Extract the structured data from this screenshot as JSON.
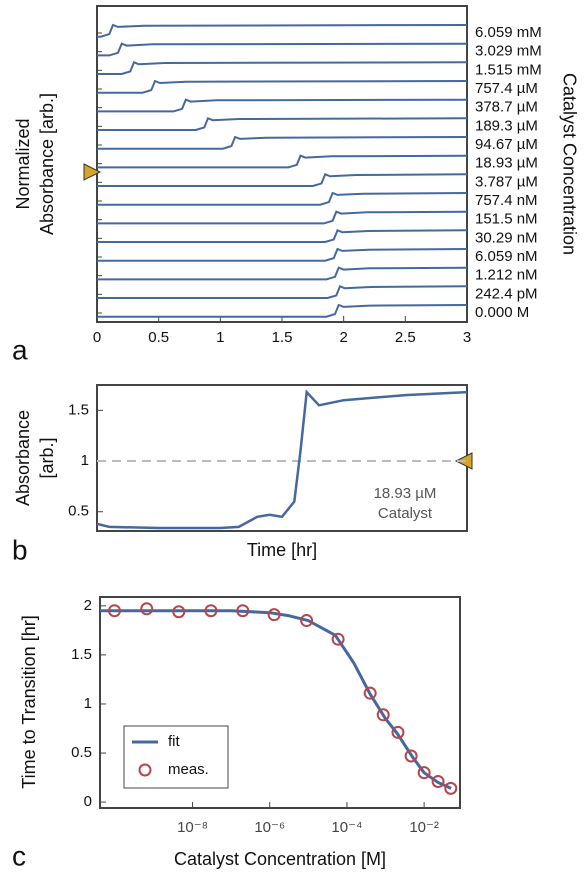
{
  "chart_data": [
    {
      "type": "line",
      "panel_label": "a",
      "y_label": [
        "Normalized",
        "Absorbance [arb.]"
      ],
      "y2_label": "Catalyst Concentration",
      "xlim": [
        0,
        3
      ],
      "xticks": [
        0,
        0.5,
        1,
        1.5,
        2,
        2.5,
        3
      ],
      "color": "#46689f",
      "series": [
        {
          "name": "6.059 mM",
          "x": [
            0,
            0.03,
            0.1,
            0.13,
            0.17,
            0.38,
            3
          ],
          "values": [
            0.1,
            0.1,
            0.3,
            1,
            0.85,
            0.95,
            1
          ]
        },
        {
          "name": "3.029 mM",
          "x": [
            0,
            0.1,
            0.17,
            0.2,
            0.24,
            0.45,
            3
          ],
          "values": [
            0.1,
            0.1,
            0.3,
            1,
            0.85,
            0.95,
            1
          ]
        },
        {
          "name": "1.515 mM",
          "x": [
            0,
            0.2,
            0.27,
            0.3,
            0.34,
            0.55,
            3
          ],
          "values": [
            0.1,
            0.1,
            0.3,
            1,
            0.85,
            0.95,
            1
          ]
        },
        {
          "name": "757.4 µM",
          "x": [
            0,
            0.37,
            0.44,
            0.47,
            0.51,
            0.72,
            3
          ],
          "values": [
            0.1,
            0.1,
            0.3,
            1,
            0.85,
            0.95,
            1
          ]
        },
        {
          "name": "378.7 µM",
          "x": [
            0,
            0.62,
            0.69,
            0.72,
            0.76,
            0.97,
            3
          ],
          "values": [
            0.1,
            0.1,
            0.3,
            1,
            0.85,
            0.95,
            1
          ]
        },
        {
          "name": "189.3 µM",
          "x": [
            0,
            0.8,
            0.87,
            0.9,
            0.94,
            1.15,
            3
          ],
          "values": [
            0.1,
            0.1,
            0.3,
            1,
            0.85,
            0.95,
            1
          ]
        },
        {
          "name": "94.67 µM",
          "x": [
            0,
            1.02,
            1.09,
            1.12,
            1.16,
            1.37,
            3
          ],
          "values": [
            0.1,
            0.1,
            0.3,
            1,
            0.85,
            0.95,
            1
          ]
        },
        {
          "name": "18.93 µM",
          "x": [
            0,
            1.55,
            1.62,
            1.65,
            1.69,
            1.9,
            3
          ],
          "values": [
            0.1,
            0.1,
            0.3,
            1,
            0.85,
            0.95,
            1
          ]
        },
        {
          "name": "3.787 µM",
          "x": [
            0,
            1.75,
            1.82,
            1.85,
            1.89,
            2.1,
            3
          ],
          "values": [
            0.1,
            0.1,
            0.3,
            1,
            0.85,
            0.95,
            1
          ]
        },
        {
          "name": "757.4 nM",
          "x": [
            0,
            1.81,
            1.88,
            1.91,
            1.95,
            2.16,
            3
          ],
          "values": [
            0.1,
            0.1,
            0.3,
            1,
            0.85,
            0.95,
            1
          ]
        },
        {
          "name": "151.5 nM",
          "x": [
            0,
            1.84,
            1.91,
            1.94,
            1.98,
            2.19,
            3
          ],
          "values": [
            0.1,
            0.1,
            0.3,
            1,
            0.85,
            0.95,
            1
          ]
        },
        {
          "name": "30.29 nM",
          "x": [
            0,
            1.85,
            1.92,
            1.95,
            1.99,
            2.2,
            3
          ],
          "values": [
            0.1,
            0.1,
            0.3,
            1,
            0.85,
            0.95,
            1
          ]
        },
        {
          "name": "6.059 nM",
          "x": [
            0,
            1.85,
            1.92,
            1.95,
            1.99,
            2.2,
            3
          ],
          "values": [
            0.1,
            0.1,
            0.3,
            1,
            0.85,
            0.95,
            1
          ]
        },
        {
          "name": "1.212 nM",
          "x": [
            0,
            1.86,
            1.93,
            1.96,
            2.0,
            2.21,
            3
          ],
          "values": [
            0.1,
            0.1,
            0.3,
            1,
            0.85,
            0.95,
            1
          ]
        },
        {
          "name": "242.4 pM",
          "x": [
            0,
            1.87,
            1.94,
            1.97,
            2.01,
            2.22,
            3
          ],
          "values": [
            0.1,
            0.1,
            0.3,
            1,
            0.85,
            0.95,
            1
          ]
        },
        {
          "name": "0.000 M",
          "x": [
            0,
            1.86,
            1.93,
            1.96,
            2.0,
            2.21,
            3
          ],
          "values": [
            0.1,
            0.1,
            0.3,
            1,
            0.85,
            0.95,
            1
          ]
        }
      ]
    },
    {
      "type": "line",
      "panel_label": "b",
      "y_label": [
        "Absorbance",
        "[arb.]"
      ],
      "x_label": "Time [hr]",
      "annotation": [
        "18.93 µM",
        "Catalyst"
      ],
      "xlim": [
        0,
        3
      ],
      "ylim": [
        0.31,
        1.75
      ],
      "yticks": [
        0.5,
        1,
        1.5
      ],
      "reference_line": 1,
      "series": [
        {
          "color": "#46689f",
          "x": [
            0,
            0.1,
            0.5,
            1.0,
            1.15,
            1.3,
            1.4,
            1.5,
            1.6,
            1.65,
            1.7,
            1.8,
            2.0,
            2.5,
            3
          ],
          "values": [
            0.38,
            0.35,
            0.34,
            0.34,
            0.35,
            0.45,
            0.47,
            0.45,
            0.6,
            1.1,
            1.68,
            1.55,
            1.6,
            1.65,
            1.68
          ]
        }
      ]
    },
    {
      "type": "scatter",
      "panel_label": "c",
      "y_label": "Time to Transition [hr]",
      "x_label": "Catalyst Concentration [M]",
      "log_x": true,
      "xlim": [
        4e-11,
        0.085
      ],
      "ylim": [
        -0.06,
        2.09
      ],
      "yticks": [
        0,
        0.5,
        1,
        1.5,
        2
      ],
      "xticks": [
        {
          "value": 1e-08,
          "label": "10⁻⁸"
        },
        {
          "value": 1e-06,
          "label": "10⁻⁶"
        },
        {
          "value": 0.0001,
          "label": "10⁻⁴"
        },
        {
          "value": 0.01,
          "label": "10⁻²"
        }
      ],
      "series": [
        {
          "name": "fit",
          "mode": "line",
          "color": "#46689f",
          "x": [
            4e-11,
            1e-09,
            1e-07,
            1e-06,
            3e-06,
            1e-05,
            5e-05,
            0.00015,
            0.0004,
            0.001,
            0.002,
            0.005,
            0.01,
            0.023,
            0.05
          ],
          "values": [
            1.95,
            1.95,
            1.95,
            1.93,
            1.9,
            1.85,
            1.7,
            1.42,
            1.1,
            0.85,
            0.7,
            0.46,
            0.3,
            0.2,
            0.14
          ]
        },
        {
          "name": "meas.",
          "mode": "markers",
          "color": "#b5464a",
          "x": [
            9.5e-11,
            6.5e-10,
            4.4e-09,
            3e-08,
            2e-07,
            1.3e-06,
            9e-06,
            5.9e-05,
            0.0004,
            0.00087,
            0.0021,
            0.0046,
            0.01,
            0.023,
            0.049
          ],
          "values": [
            1.95,
            1.97,
            1.94,
            1.95,
            1.95,
            1.91,
            1.85,
            1.66,
            1.11,
            0.89,
            0.71,
            0.47,
            0.3,
            0.21,
            0.14
          ]
        }
      ]
    }
  ]
}
